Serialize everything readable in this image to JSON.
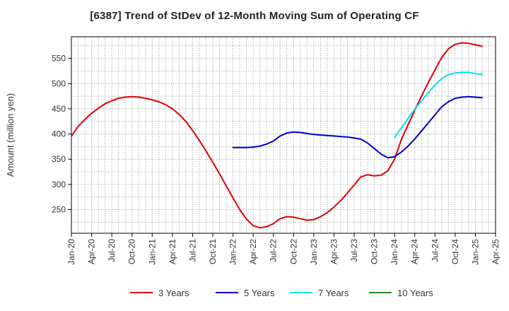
{
  "chart_data": {
    "type": "line",
    "title": "[6387]  Trend of StDev of 12-Month Moving Sum of Operating CF",
    "xlabel": "",
    "ylabel": "Amount (million yen)",
    "ylim": [
      203,
      593
    ],
    "yticks": [
      250,
      300,
      350,
      400,
      450,
      500,
      550
    ],
    "xlim": [
      "2020-01",
      "2025-04"
    ],
    "xticks": [
      "Jan-20",
      "Apr-20",
      "Jul-20",
      "Oct-20",
      "Jan-21",
      "Apr-21",
      "Jul-21",
      "Oct-21",
      "Jan-22",
      "Apr-22",
      "Jul-22",
      "Oct-22",
      "Jan-23",
      "Apr-23",
      "Jul-23",
      "Oct-23",
      "Jan-24",
      "Apr-24",
      "Jul-24",
      "Oct-24",
      "Jan-25",
      "Apr-25"
    ],
    "grid": true,
    "legend_position": "bottom",
    "series": [
      {
        "name": "3 Years",
        "color": "#e00000",
        "points": [
          [
            "2020-01",
            396
          ],
          [
            "2020-02",
            415
          ],
          [
            "2020-03",
            429
          ],
          [
            "2020-04",
            441
          ],
          [
            "2020-05",
            451
          ],
          [
            "2020-06",
            460
          ],
          [
            "2020-07",
            466
          ],
          [
            "2020-08",
            471
          ],
          [
            "2020-09",
            473
          ],
          [
            "2020-10",
            474
          ],
          [
            "2020-11",
            473
          ],
          [
            "2020-12",
            471
          ],
          [
            "2021-01",
            468
          ],
          [
            "2021-02",
            464
          ],
          [
            "2021-03",
            458
          ],
          [
            "2021-04",
            450
          ],
          [
            "2021-05",
            439
          ],
          [
            "2021-06",
            425
          ],
          [
            "2021-07",
            407
          ],
          [
            "2021-08",
            387
          ],
          [
            "2021-09",
            366
          ],
          [
            "2021-10",
            344
          ],
          [
            "2021-11",
            321
          ],
          [
            "2021-12",
            297
          ],
          [
            "2022-01",
            273
          ],
          [
            "2022-02",
            250
          ],
          [
            "2022-03",
            231
          ],
          [
            "2022-04",
            218
          ],
          [
            "2022-05",
            214
          ],
          [
            "2022-06",
            216
          ],
          [
            "2022-07",
            222
          ],
          [
            "2022-08",
            232
          ],
          [
            "2022-09",
            236
          ],
          [
            "2022-10",
            235
          ],
          [
            "2022-11",
            232
          ],
          [
            "2022-12",
            229
          ],
          [
            "2023-01",
            230
          ],
          [
            "2023-02",
            236
          ],
          [
            "2023-03",
            244
          ],
          [
            "2023-04",
            255
          ],
          [
            "2023-05",
            268
          ],
          [
            "2023-06",
            283
          ],
          [
            "2023-07",
            299
          ],
          [
            "2023-08",
            315
          ],
          [
            "2023-09",
            319
          ],
          [
            "2023-10",
            317
          ],
          [
            "2023-11",
            318
          ],
          [
            "2023-12",
            327
          ],
          [
            "2024-01",
            350
          ],
          [
            "2024-02",
            389
          ],
          [
            "2024-03",
            418
          ],
          [
            "2024-04",
            447
          ],
          [
            "2024-05",
            475
          ],
          [
            "2024-06",
            502
          ],
          [
            "2024-07",
            527
          ],
          [
            "2024-08",
            552
          ],
          [
            "2024-09",
            569
          ],
          [
            "2024-10",
            578
          ],
          [
            "2024-11",
            581
          ],
          [
            "2024-12",
            580
          ],
          [
            "2025-01",
            577
          ],
          [
            "2025-02",
            574
          ]
        ]
      },
      {
        "name": "5 Years",
        "color": "#0000cc",
        "points": [
          [
            "2022-01",
            373
          ],
          [
            "2022-02",
            373
          ],
          [
            "2022-03",
            373
          ],
          [
            "2022-04",
            374
          ],
          [
            "2022-05",
            376
          ],
          [
            "2022-06",
            380
          ],
          [
            "2022-07",
            386
          ],
          [
            "2022-08",
            396
          ],
          [
            "2022-09",
            402
          ],
          [
            "2022-10",
            404
          ],
          [
            "2022-11",
            403
          ],
          [
            "2022-12",
            401
          ],
          [
            "2023-01",
            399
          ],
          [
            "2023-02",
            398
          ],
          [
            "2023-03",
            397
          ],
          [
            "2023-04",
            396
          ],
          [
            "2023-05",
            395
          ],
          [
            "2023-06",
            394
          ],
          [
            "2023-07",
            392
          ],
          [
            "2023-08",
            390
          ],
          [
            "2023-09",
            382
          ],
          [
            "2023-10",
            371
          ],
          [
            "2023-11",
            360
          ],
          [
            "2023-12",
            353
          ],
          [
            "2024-01",
            355
          ],
          [
            "2024-02",
            364
          ],
          [
            "2024-03",
            376
          ],
          [
            "2024-04",
            390
          ],
          [
            "2024-05",
            406
          ],
          [
            "2024-06",
            422
          ],
          [
            "2024-07",
            438
          ],
          [
            "2024-08",
            454
          ],
          [
            "2024-09",
            464
          ],
          [
            "2024-10",
            471
          ],
          [
            "2024-11",
            473
          ],
          [
            "2024-12",
            474
          ],
          [
            "2025-01",
            473
          ],
          [
            "2025-02",
            472
          ]
        ]
      },
      {
        "name": "7 Years",
        "color": "#00e5ee",
        "points": [
          [
            "2024-01",
            393
          ],
          [
            "2024-02",
            412
          ],
          [
            "2024-03",
            431
          ],
          [
            "2024-04",
            449
          ],
          [
            "2024-05",
            466
          ],
          [
            "2024-06",
            482
          ],
          [
            "2024-07",
            497
          ],
          [
            "2024-08",
            510
          ],
          [
            "2024-09",
            518
          ],
          [
            "2024-10",
            521
          ],
          [
            "2024-11",
            522
          ],
          [
            "2024-12",
            522
          ],
          [
            "2025-01",
            520
          ],
          [
            "2025-02",
            518
          ]
        ]
      },
      {
        "name": "10 Years",
        "color": "#228b22",
        "points": []
      }
    ]
  }
}
